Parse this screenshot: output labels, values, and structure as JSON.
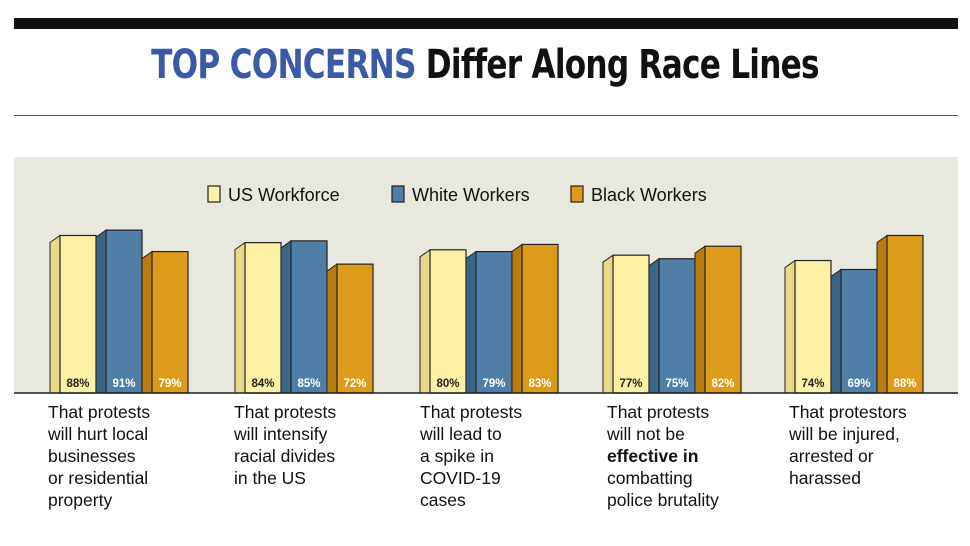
{
  "header": {
    "title_highlight": "TOP CONCERNS",
    "title_rest": "Differ Along Race Lines"
  },
  "colors": {
    "us_workforce": "#fdf1a6",
    "white_workers": "#4f7fa6",
    "black_workers": "#dd9b1b",
    "panel": "#e9e8df",
    "title_blue": "#3a5aa8"
  },
  "chart_data": {
    "type": "bar",
    "title": "TOP CONCERNS Differ Along Race Lines",
    "xlabel": "",
    "ylabel": "",
    "ylim": [
      0,
      100
    ],
    "grid": false,
    "legend_position": "top-center",
    "categories": [
      {
        "lines": [
          [
            "That protests"
          ],
          [
            "will hurt local"
          ],
          [
            "businesses"
          ],
          [
            "or residential"
          ],
          [
            "property"
          ]
        ]
      },
      {
        "lines": [
          [
            "That protests"
          ],
          [
            "will intensify"
          ],
          [
            "racial divides"
          ],
          [
            "in the US"
          ]
        ]
      },
      {
        "lines": [
          [
            "That protests"
          ],
          [
            "will lead to"
          ],
          [
            "a spike in"
          ],
          [
            "COVID-19"
          ],
          [
            "cases"
          ]
        ]
      },
      {
        "lines": [
          [
            "That protests"
          ],
          [
            "will not be"
          ],
          [
            "**effective in"
          ],
          [
            "combatting"
          ],
          [
            "police brutality"
          ]
        ]
      },
      {
        "lines": [
          [
            "That protestors"
          ],
          [
            "will be injured,"
          ],
          [
            "arrested or"
          ],
          [
            "harassed"
          ]
        ]
      }
    ],
    "series": [
      {
        "name": "US Workforce",
        "values": [
          88,
          84,
          80,
          77,
          74
        ],
        "labels": [
          "88%",
          "84%",
          "80%",
          "77%",
          "74%"
        ]
      },
      {
        "name": "White Workers",
        "values": [
          91,
          85,
          79,
          75,
          69
        ],
        "labels": [
          "91%",
          "85%",
          "79%",
          "75%",
          "69%"
        ]
      },
      {
        "name": "Black Workers",
        "values": [
          79,
          72,
          83,
          82,
          88
        ],
        "labels": [
          "79%",
          "72%",
          "83%",
          "82%",
          "88%"
        ]
      }
    ]
  }
}
